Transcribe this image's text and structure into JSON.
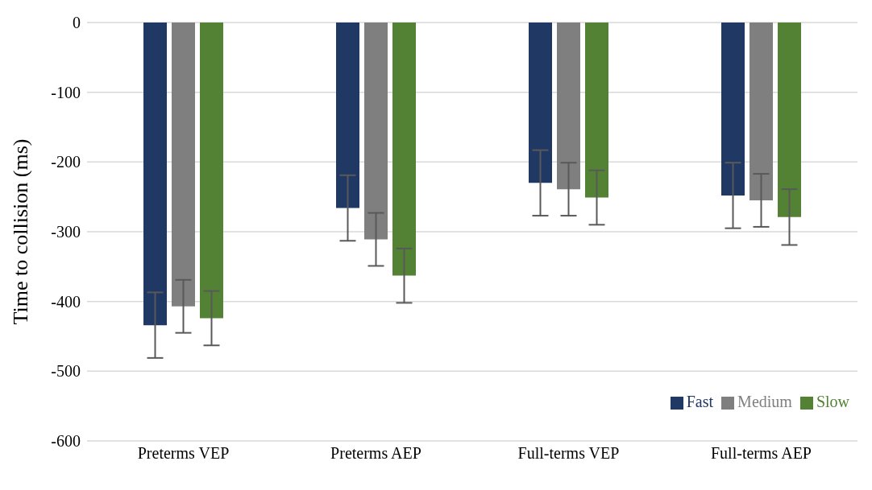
{
  "chart_data": {
    "type": "bar",
    "ylabel": "Time to collision (ms)",
    "categories": [
      "Preterms VEP",
      "Preterms AEP",
      "Full-terms VEP",
      "Full-terms AEP"
    ],
    "series": [
      {
        "name": "Fast",
        "color": "#203864",
        "values": [
          -434,
          -266,
          -230,
          -248
        ],
        "errors": [
          47,
          47,
          47,
          47
        ]
      },
      {
        "name": "Medium",
        "color": "#7f7f7f",
        "values": [
          -407,
          -311,
          -239,
          -255
        ],
        "errors": [
          38,
          38,
          38,
          38
        ]
      },
      {
        "name": "Slow",
        "color": "#548235",
        "values": [
          -424,
          -363,
          -251,
          -279
        ],
        "errors": [
          39,
          39,
          39,
          40
        ]
      }
    ],
    "ylim": [
      -600,
      0
    ],
    "yticks": [
      -600,
      -500,
      -400,
      -300,
      -200,
      -100,
      0
    ],
    "grid": "y",
    "legend": "bottom right"
  }
}
